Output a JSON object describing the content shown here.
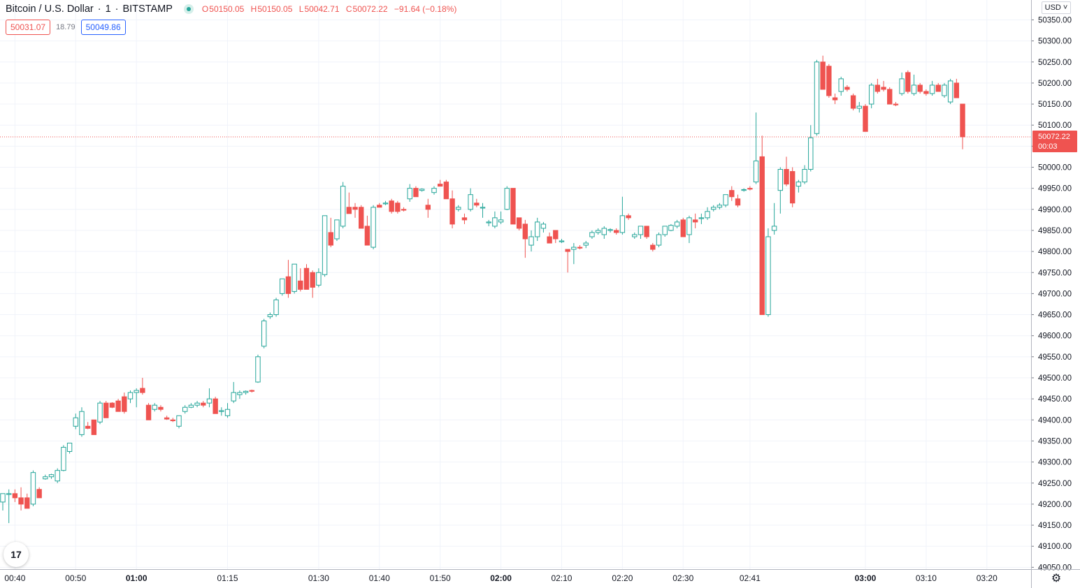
{
  "symbol": {
    "name": "Bitcoin / U.S. Dollar",
    "sep1": "·",
    "interval": "1",
    "sep2": "·",
    "exchange": "BITSTAMP"
  },
  "ohlc": {
    "o_label": "O",
    "o": "50150.05",
    "h_label": "H",
    "h": "50150.05",
    "l_label": "L",
    "l": "50042.71",
    "c_label": "C",
    "c": "50072.22",
    "change": "−91.64 (−0.18%)"
  },
  "quote": {
    "sell": "50031.07",
    "spread": "18.79",
    "buy": "50049.86"
  },
  "currency": "USD ˅",
  "last_price_label": {
    "price": "50072.22",
    "countdown": "00:03"
  },
  "logo_text": "17",
  "colors": {
    "up": "#26a69a",
    "down": "#ef5350",
    "grid": "#f0f3fa",
    "text": "#131722",
    "buy": "#2962ff"
  },
  "chart_data": {
    "type": "candlestick",
    "y_axis": {
      "position": "right",
      "min": 49040,
      "max": 50370,
      "ticks": [
        49050,
        49100,
        49150,
        49200,
        49250,
        49300,
        49350,
        49400,
        49450,
        49500,
        49550,
        49600,
        49650,
        49700,
        49750,
        49800,
        49850,
        49900,
        49950,
        50000,
        50050,
        50100,
        50150,
        50200,
        50250,
        50300,
        50350
      ]
    },
    "x_axis": {
      "first_minute": 38,
      "last_minute": 203,
      "labels": [
        {
          "minute": 40,
          "text": "00:40",
          "bold": false
        },
        {
          "minute": 50,
          "text": "00:50",
          "bold": false
        },
        {
          "minute": 60,
          "text": "01:00",
          "bold": true
        },
        {
          "minute": 75,
          "text": "01:15",
          "bold": false
        },
        {
          "minute": 90,
          "text": "01:30",
          "bold": false
        },
        {
          "minute": 100,
          "text": "01:40",
          "bold": false
        },
        {
          "minute": 110,
          "text": "01:50",
          "bold": false
        },
        {
          "minute": 120,
          "text": "02:00",
          "bold": true
        },
        {
          "minute": 130,
          "text": "02:10",
          "bold": false
        },
        {
          "minute": 140,
          "text": "02:20",
          "bold": false
        },
        {
          "minute": 150,
          "text": "02:30",
          "bold": false
        },
        {
          "minute": 161,
          "text": "02:41",
          "bold": false
        },
        {
          "minute": 180,
          "text": "03:00",
          "bold": true
        },
        {
          "minute": 190,
          "text": "03:10",
          "bold": false
        },
        {
          "minute": 200,
          "text": "03:20",
          "bold": false
        }
      ]
    },
    "grid": true,
    "last_price": 50072.22,
    "candles": [
      [
        38,
        49205,
        49225,
        49185,
        49225
      ],
      [
        39,
        49225,
        49235,
        49155,
        49225
      ],
      [
        40,
        49225,
        49235,
        49205,
        49215
      ],
      [
        41,
        49215,
        49240,
        49185,
        49200
      ],
      [
        42,
        49215,
        49225,
        49190,
        49190
      ],
      [
        43,
        49200,
        49280,
        49195,
        49275
      ],
      [
        44,
        49235,
        49240,
        49215,
        49215
      ],
      [
        45,
        49260,
        49270,
        49258,
        49265
      ],
      [
        46,
        49265,
        49272,
        49260,
        49270
      ],
      [
        47,
        49255,
        49285,
        49250,
        49280
      ],
      [
        48,
        49280,
        49340,
        49278,
        49335
      ],
      [
        49,
        49325,
        49345,
        49320,
        49345
      ],
      [
        50,
        49385,
        49415,
        49378,
        49405
      ],
      [
        51,
        49365,
        49430,
        49360,
        49420
      ],
      [
        52,
        49385,
        49395,
        49378,
        49380
      ],
      [
        53,
        49400,
        49400,
        49365,
        49365
      ],
      [
        54,
        49395,
        49445,
        49390,
        49440
      ],
      [
        55,
        49440,
        49445,
        49405,
        49405
      ],
      [
        56,
        49440,
        49442,
        49428,
        49430
      ],
      [
        57,
        49445,
        49450,
        49420,
        49420
      ],
      [
        58,
        49455,
        49465,
        49415,
        49420
      ],
      [
        59,
        49450,
        49470,
        49440,
        49465
      ],
      [
        60,
        49465,
        49475,
        49430,
        49470
      ],
      [
        61,
        49475,
        49500,
        49460,
        49465
      ],
      [
        62,
        49435,
        49440,
        49400,
        49400
      ],
      [
        63,
        49425,
        49440,
        49420,
        49435
      ],
      [
        64,
        49430,
        49435,
        49420,
        49425
      ],
      [
        65,
        49405,
        49410,
        49400,
        49402
      ],
      [
        66,
        49400,
        49405,
        49395,
        49398
      ],
      [
        67,
        49385,
        49410,
        49380,
        49410
      ],
      [
        68,
        49420,
        49435,
        49415,
        49430
      ],
      [
        69,
        49430,
        49440,
        49428,
        49435
      ],
      [
        70,
        49435,
        49445,
        49430,
        49440
      ],
      [
        71,
        49440,
        49445,
        49430,
        49435
      ],
      [
        72,
        49440,
        49475,
        49430,
        49450
      ],
      [
        73,
        49450,
        49455,
        49415,
        49415
      ],
      [
        74,
        49420,
        49430,
        49410,
        49422
      ],
      [
        75,
        49410,
        49440,
        49405,
        49425
      ],
      [
        76,
        49445,
        49490,
        49440,
        49465
      ],
      [
        77,
        49460,
        49470,
        49450,
        49465
      ],
      [
        78,
        49465,
        49470,
        49460,
        49468
      ],
      [
        79,
        49470,
        49472,
        49465,
        49468
      ],
      [
        80,
        49490,
        49555,
        49488,
        49550
      ],
      [
        81,
        49575,
        49640,
        49570,
        49635
      ],
      [
        82,
        49645,
        49655,
        49640,
        49650
      ],
      [
        83,
        49650,
        49690,
        49645,
        49685
      ],
      [
        84,
        49700,
        49735,
        49695,
        49735
      ],
      [
        85,
        49740,
        49780,
        49690,
        49700
      ],
      [
        86,
        49705,
        49770,
        49700,
        49770
      ],
      [
        87,
        49730,
        49760,
        49705,
        49710
      ],
      [
        88,
        49760,
        49770,
        49710,
        49710
      ],
      [
        89,
        49750,
        49755,
        49690,
        49715
      ],
      [
        90,
        49720,
        49760,
        49715,
        49750
      ],
      [
        91,
        49745,
        49885,
        49740,
        49885
      ],
      [
        92,
        49845,
        49880,
        49810,
        49815
      ],
      [
        93,
        49830,
        49875,
        49825,
        49875
      ],
      [
        94,
        49860,
        49965,
        49855,
        49955
      ],
      [
        95,
        49905,
        49940,
        49890,
        49890
      ],
      [
        96,
        49905,
        49915,
        49880,
        49900
      ],
      [
        97,
        49905,
        49910,
        49855,
        49855
      ],
      [
        98,
        49860,
        49885,
        49815,
        49815
      ],
      [
        99,
        49810,
        49910,
        49805,
        49905
      ],
      [
        100,
        49910,
        49915,
        49905,
        49905
      ],
      [
        101,
        49915,
        49920,
        49910,
        49915
      ],
      [
        102,
        49920,
        49925,
        49890,
        49895
      ],
      [
        103,
        49915,
        49920,
        49890,
        49895
      ],
      [
        104,
        49900,
        49905,
        49895,
        49898
      ],
      [
        105,
        49925,
        49960,
        49918,
        49950
      ],
      [
        106,
        49950,
        49955,
        49930,
        49930
      ],
      [
        107,
        49945,
        49950,
        49942,
        49948
      ],
      [
        108,
        49910,
        49925,
        49880,
        49900
      ],
      [
        109,
        49940,
        49955,
        49935,
        49950
      ],
      [
        110,
        49960,
        49970,
        49955,
        49955
      ],
      [
        111,
        49965,
        49970,
        49935,
        49925
      ],
      [
        112,
        49925,
        49945,
        49855,
        49865
      ],
      [
        113,
        49900,
        49910,
        49895,
        49905
      ],
      [
        114,
        49880,
        49890,
        49865,
        49875
      ],
      [
        115,
        49900,
        49950,
        49895,
        49935
      ],
      [
        116,
        49915,
        49925,
        49905,
        49910
      ],
      [
        117,
        49905,
        49915,
        49880,
        49905
      ],
      [
        118,
        49870,
        49875,
        49860,
        49870
      ],
      [
        119,
        49860,
        49895,
        49855,
        49880
      ],
      [
        120,
        49870,
        49895,
        49865,
        49875
      ],
      [
        121,
        49900,
        49955,
        49898,
        49950
      ],
      [
        122,
        49950,
        49950,
        49865,
        49865
      ],
      [
        123,
        49880,
        49880,
        49850,
        49855
      ],
      [
        124,
        49865,
        49875,
        49785,
        49830
      ],
      [
        125,
        49815,
        49850,
        49800,
        49835
      ],
      [
        126,
        49835,
        49880,
        49825,
        49870
      ],
      [
        127,
        49855,
        49870,
        49845,
        49865
      ],
      [
        128,
        49835,
        49845,
        49820,
        49820
      ],
      [
        129,
        49850,
        49850,
        49820,
        49830
      ],
      [
        130,
        49825,
        49830,
        49820,
        49825
      ],
      [
        131,
        49805,
        49805,
        49750,
        49800
      ],
      [
        132,
        49805,
        49820,
        49770,
        49810
      ],
      [
        133,
        49810,
        49815,
        49805,
        49808
      ],
      [
        134,
        49815,
        49825,
        49808,
        49820
      ],
      [
        135,
        49835,
        49850,
        49830,
        49845
      ],
      [
        136,
        49845,
        49855,
        49840,
        49850
      ],
      [
        137,
        49840,
        49860,
        49830,
        49855
      ],
      [
        138,
        49850,
        49855,
        49845,
        49852
      ],
      [
        139,
        49850,
        49855,
        49840,
        49845
      ],
      [
        140,
        49845,
        49930,
        49840,
        49885
      ],
      [
        141,
        49885,
        49890,
        49875,
        49880
      ],
      [
        142,
        49835,
        49845,
        49830,
        49840
      ],
      [
        143,
        49840,
        49860,
        49830,
        49860
      ],
      [
        144,
        49860,
        49860,
        49830,
        49835
      ],
      [
        145,
        49815,
        49820,
        49800,
        49805
      ],
      [
        146,
        49815,
        49845,
        49810,
        49840
      ],
      [
        147,
        49840,
        49860,
        49835,
        49860
      ],
      [
        148,
        49850,
        49865,
        49848,
        49862
      ],
      [
        149,
        49860,
        49875,
        49855,
        49870
      ],
      [
        150,
        49875,
        49880,
        49835,
        49835
      ],
      [
        151,
        49840,
        49885,
        49820,
        49880
      ],
      [
        152,
        49875,
        49890,
        49855,
        49870
      ],
      [
        153,
        49880,
        49890,
        49865,
        49880
      ],
      [
        154,
        49880,
        49905,
        49875,
        49895
      ],
      [
        155,
        49900,
        49910,
        49895,
        49905
      ],
      [
        156,
        49905,
        49915,
        49900,
        49910
      ],
      [
        157,
        49910,
        49935,
        49905,
        49935
      ],
      [
        158,
        49945,
        49955,
        49920,
        49930
      ],
      [
        159,
        49925,
        49935,
        49905,
        49910
      ],
      [
        160,
        49945,
        49950,
        49942,
        49947
      ],
      [
        161,
        49950,
        49955,
        49945,
        49948
      ],
      [
        162,
        49965,
        50130,
        49960,
        50015
      ],
      [
        163,
        50025,
        50075,
        49650,
        49650
      ],
      [
        164,
        49650,
        49855,
        49645,
        49835
      ],
      [
        165,
        49850,
        49915,
        49840,
        49860
      ],
      [
        166,
        49945,
        50000,
        49890,
        49995
      ],
      [
        167,
        49995,
        50025,
        49955,
        49960
      ],
      [
        168,
        49990,
        50000,
        49905,
        49915
      ],
      [
        169,
        49955,
        49970,
        49940,
        49965
      ],
      [
        170,
        49965,
        50005,
        49960,
        49995
      ],
      [
        171,
        49995,
        50100,
        49990,
        50070
      ],
      [
        172,
        50080,
        50255,
        50075,
        50250
      ],
      [
        173,
        50250,
        50265,
        50185,
        50185
      ],
      [
        174,
        50240,
        50245,
        50165,
        50170
      ],
      [
        175,
        50165,
        50175,
        50150,
        50160
      ],
      [
        176,
        50180,
        50215,
        50170,
        50210
      ],
      [
        177,
        50190,
        50195,
        50180,
        50185
      ],
      [
        178,
        50170,
        50175,
        50135,
        50140
      ],
      [
        179,
        50140,
        50155,
        50130,
        50145
      ],
      [
        180,
        50145,
        50150,
        50085,
        50085
      ],
      [
        181,
        50150,
        50200,
        50140,
        50195
      ],
      [
        182,
        50195,
        50210,
        50175,
        50180
      ],
      [
        183,
        50190,
        50205,
        50180,
        50185
      ],
      [
        184,
        50185,
        50190,
        50150,
        50150
      ],
      [
        185,
        50150,
        50155,
        50145,
        50148
      ],
      [
        186,
        50175,
        50225,
        50170,
        50210
      ],
      [
        187,
        50225,
        50230,
        50175,
        50180
      ],
      [
        188,
        50175,
        50220,
        50170,
        50195
      ],
      [
        189,
        50195,
        50200,
        50175,
        50180
      ],
      [
        190,
        50180,
        50185,
        50170,
        50175
      ],
      [
        191,
        50175,
        50205,
        50170,
        50195
      ],
      [
        192,
        50195,
        50200,
        50180,
        50180
      ],
      [
        193,
        50170,
        50200,
        50165,
        50195
      ],
      [
        194,
        50155,
        50210,
        50150,
        50205
      ],
      [
        195,
        50200,
        50210,
        50165,
        50165
      ],
      [
        196,
        50150.05,
        50150.05,
        50042.71,
        50072.22
      ]
    ]
  }
}
